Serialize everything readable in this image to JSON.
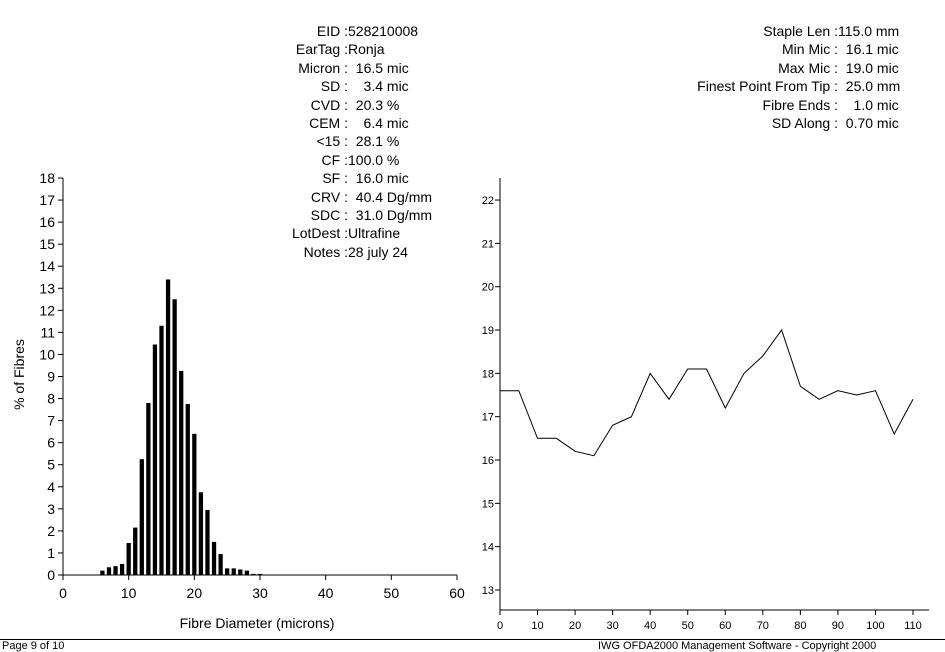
{
  "left_stats": [
    {
      "label": "EID",
      "value": "528210008"
    },
    {
      "label": "EarTag",
      "value": "Ronja"
    },
    {
      "label": "Micron",
      "value": "  16.5 mic"
    },
    {
      "label": "SD",
      "value": "    3.4 mic"
    },
    {
      "label": "CVD",
      "value": "  20.3 %"
    },
    {
      "label": "CEM",
      "value": "    6.4 mic"
    },
    {
      "label": "<15",
      "value": "  28.1 %"
    },
    {
      "label": "CF",
      "value": "100.0 %"
    },
    {
      "label": "SF",
      "value": "  16.0 mic"
    },
    {
      "label": "CRV",
      "value": "  40.4 Dg/mm"
    },
    {
      "label": "SDC",
      "value": "  31.0 Dg/mm"
    },
    {
      "label": "LotDest",
      "value": "Ultrafine"
    },
    {
      "label": "Notes",
      "value": "28 july 24"
    }
  ],
  "right_stats": [
    {
      "label": "Staple Len",
      "value": "115.0 mm"
    },
    {
      "label": "Min Mic",
      "value": "  16.1 mic"
    },
    {
      "label": "Max Mic",
      "value": "  19.0 mic"
    },
    {
      "label": "Finest Point From Tip",
      "value": "  25.0 mm"
    },
    {
      "label": "Fibre Ends",
      "value": "    1.0 mic"
    },
    {
      "label": "SD Along",
      "value": "  0.70 mic"
    }
  ],
  "chart_data": [
    {
      "type": "bar",
      "xlabel": "Fibre Diameter (microns)",
      "ylabel": "% of Fibres",
      "xlim": [
        0,
        60
      ],
      "ylim": [
        0,
        18
      ],
      "x_ticks": [
        0,
        10,
        20,
        30,
        40,
        50,
        60
      ],
      "y_ticks": [
        0,
        1,
        2,
        3,
        4,
        5,
        6,
        7,
        8,
        9,
        10,
        11,
        12,
        13,
        14,
        15,
        16,
        17,
        18
      ],
      "x": [
        6,
        7,
        8,
        9,
        10,
        11,
        12,
        13,
        14,
        15,
        16,
        17,
        18,
        19,
        20,
        21,
        22,
        23,
        24,
        25,
        26,
        27,
        28,
        29,
        30
      ],
      "values": [
        0.2,
        0.35,
        0.4,
        0.5,
        1.45,
        2.15,
        5.25,
        7.8,
        10.45,
        11.3,
        13.4,
        12.5,
        9.25,
        7.75,
        6.4,
        3.75,
        2.95,
        1.5,
        0.95,
        0.3,
        0.3,
        0.25,
        0.2,
        0.05,
        0.05
      ]
    },
    {
      "type": "line",
      "xlim": [
        0,
        115
      ],
      "ylim": [
        12.7,
        22.4
      ],
      "x_ticks": [
        0,
        10,
        20,
        30,
        40,
        50,
        60,
        70,
        80,
        90,
        100,
        110
      ],
      "y_ticks": [
        13,
        14,
        15,
        16,
        17,
        18,
        19,
        20,
        21,
        22
      ],
      "x": [
        0,
        5,
        10,
        15,
        20,
        25,
        30,
        35,
        40,
        45,
        50,
        55,
        60,
        65,
        70,
        75,
        80,
        85,
        90,
        95,
        100,
        105,
        110
      ],
      "values": [
        17.6,
        17.6,
        16.5,
        16.5,
        16.2,
        16.1,
        16.8,
        17.0,
        18.0,
        17.4,
        18.1,
        18.1,
        17.2,
        18.0,
        18.4,
        19.0,
        17.7,
        17.4,
        17.6,
        17.5,
        17.6,
        16.6,
        17.4
      ]
    }
  ],
  "footer": {
    "left": "Page 9 of 10",
    "right": "IWG OFDA2000 Management Software - Copyright 2000"
  }
}
